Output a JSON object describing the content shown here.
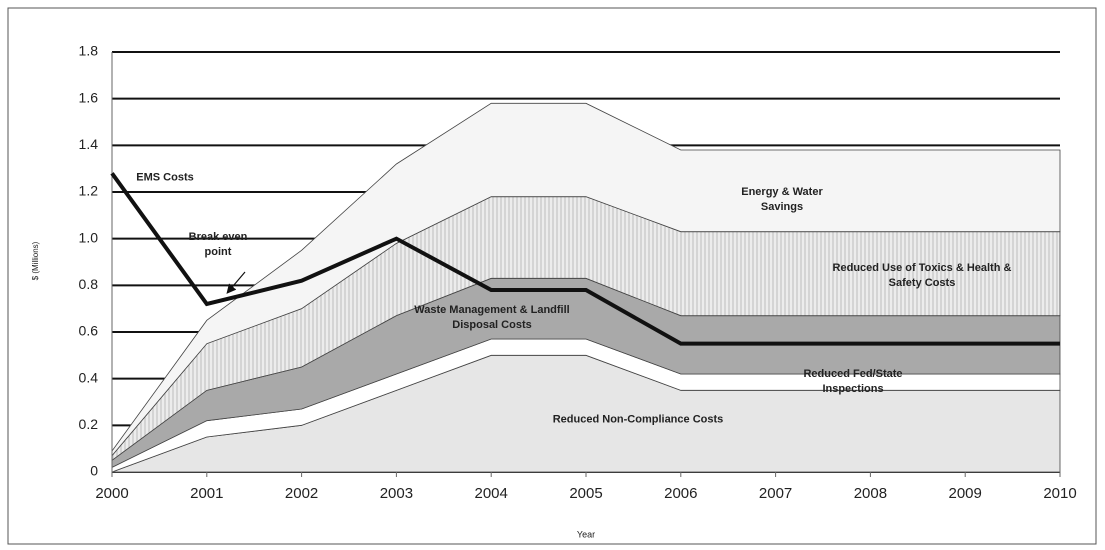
{
  "chart_data": {
    "type": "area",
    "stacked": true,
    "x_label": "Year",
    "y_label": "$ (Millions)",
    "x": [
      2000,
      2001,
      2002,
      2003,
      2004,
      2005,
      2006,
      2007,
      2008,
      2009,
      2010
    ],
    "xlim": [
      2000,
      2010
    ],
    "xticks": [
      2000,
      2001,
      2002,
      2003,
      2004,
      2005,
      2006,
      2007,
      2008,
      2009,
      2010
    ],
    "ylim": [
      0,
      1.8
    ],
    "yticks": [
      0,
      0.2,
      0.4,
      0.6,
      0.8,
      {
        "value": 1,
        "label": "1.0"
      },
      1.2,
      1.4,
      1.6,
      1.8
    ],
    "grid": true,
    "series": [
      {
        "name": "Reduced Non-Compliance Costs",
        "color": "#e6e6e6",
        "values": [
          0,
          0.15,
          0.2,
          0.35,
          0.5,
          0.5,
          0.35,
          0.35,
          0.35,
          0.35,
          0.35
        ]
      },
      {
        "name": "Reduced Fed/State Inspections",
        "color": "#ffffff",
        "values": [
          0.02,
          0.07,
          0.07,
          0.07,
          0.07,
          0.07,
          0.07,
          0.07,
          0.07,
          0.07,
          0.07
        ]
      },
      {
        "name": "Waste Management & Landfill Disposal Costs",
        "color": "#a9a9a9",
        "values": [
          0.03,
          0.13,
          0.18,
          0.25,
          0.26,
          0.26,
          0.25,
          0.25,
          0.25,
          0.25,
          0.25
        ]
      },
      {
        "name": "Reduced Use of Toxics & Health & Safety Costs",
        "color": "#e2e2e2",
        "pattern": "vertical-hatch",
        "values": [
          0.02,
          0.2,
          0.25,
          0.31,
          0.35,
          0.35,
          0.36,
          0.36,
          0.36,
          0.36,
          0.36
        ]
      },
      {
        "name": "Energy & Water Savings",
        "color": "#f5f5f5",
        "values": [
          0.02,
          0.1,
          0.25,
          0.34,
          0.4,
          0.4,
          0.35,
          0.35,
          0.35,
          0.35,
          0.35
        ]
      }
    ],
    "line": {
      "name": "EMS Costs",
      "color": "#111111",
      "values": [
        1.28,
        0.72,
        0.82,
        1,
        0.78,
        0.78,
        0.55,
        0.55,
        0.55,
        0.55,
        0.55
      ]
    },
    "annotation": "Break even point"
  }
}
